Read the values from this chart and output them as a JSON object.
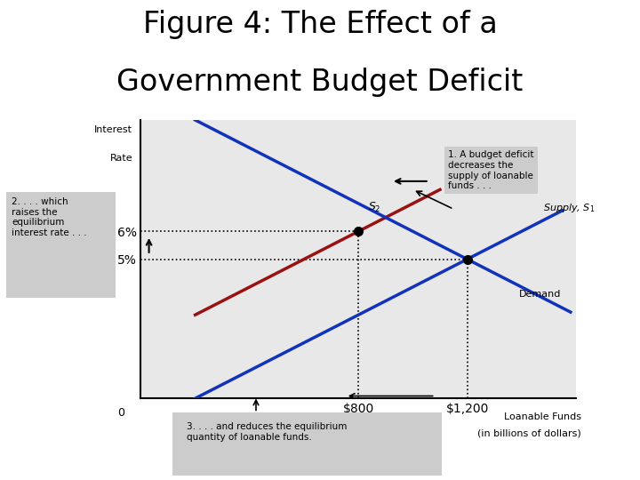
{
  "title_line1": "Figure 4: The Effect of a",
  "title_line2": "Government Budget Deficit",
  "background_color": "#ffffff",
  "plot_bg_color": "#e8e8e8",
  "xlim": [
    0,
    1600
  ],
  "ylim": [
    0,
    10
  ],
  "x_ticks": [
    800,
    1200
  ],
  "x_tick_labels": [
    "$800",
    "$1,200"
  ],
  "y_ticks": [
    5,
    6
  ],
  "y_tick_labels": [
    "5%",
    "6%"
  ],
  "supply1_color": "#1133bb",
  "supply2_color": "#991111",
  "demand_color": "#1133bb",
  "eq1_x": 1200,
  "eq1_y": 5,
  "eq2_x": 800,
  "eq2_y": 6,
  "s_slope": 0.005,
  "d_slope": -0.005,
  "annotation1": "1. A budget deficit\ndecreases the\nsupply of loanable\nfunds . . .",
  "annotation2": "2. . . . which\nraises the\nequilibrium\ninterest rate . . .",
  "annotation3": "3. . . . and reduces the equilibrium\nquantity of loanable funds."
}
